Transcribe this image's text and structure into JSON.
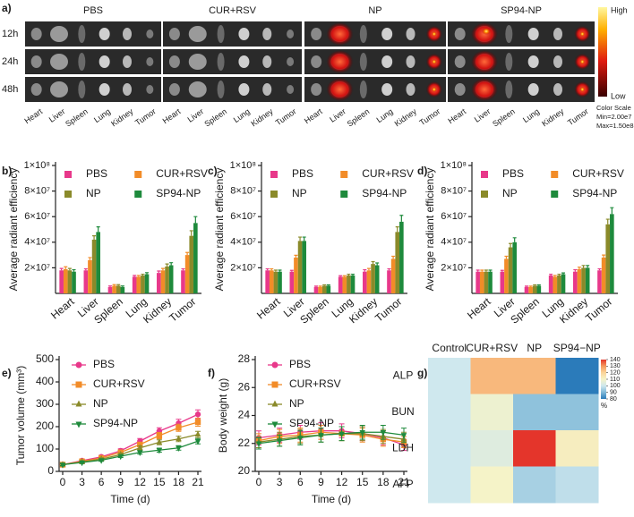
{
  "imaging": {
    "label": "a)",
    "groups": [
      "PBS",
      "CUR+RSV",
      "NP",
      "SP94-NP"
    ],
    "times": [
      "12h",
      "24h",
      "48h"
    ],
    "organs": [
      "Heart",
      "Liver",
      "Spleen",
      "Lung",
      "Kidney",
      "Tumor"
    ],
    "scale": {
      "high": "High",
      "low": "Low",
      "title": "Color Scale",
      "min": "Min=2.00e7",
      "max": "Max=1.50e8"
    }
  },
  "chart_data": [
    {
      "type": "bar",
      "label": "b)",
      "ylabel": "Average radiant efficiency",
      "categories": [
        "Heart",
        "Liver",
        "Spleen",
        "Lung",
        "Kidney",
        "Tumor"
      ],
      "ylim": [
        0,
        100000000
      ],
      "yticks": [
        {
          "value": 20000000,
          "label": "2×10⁷"
        },
        {
          "value": 40000000,
          "label": "4×10⁷"
        },
        {
          "value": 60000000,
          "label": "6×10⁷"
        },
        {
          "value": 80000000,
          "label": "8×10⁷"
        },
        {
          "value": 100000000,
          "label": "1×10⁸"
        }
      ],
      "series": [
        {
          "name": "PBS",
          "color": "#e8388a",
          "values": [
            18000000,
            18000000,
            5000000,
            13000000,
            16000000,
            18000000
          ],
          "errors": [
            1500000,
            1200000,
            800000,
            1000000,
            1500000,
            1200000
          ]
        },
        {
          "name": "CUR+RSV",
          "color": "#f28c28",
          "values": [
            19000000,
            26000000,
            6000000,
            13000000,
            18000000,
            30000000
          ],
          "errors": [
            1800000,
            2000000,
            800000,
            1000000,
            1500000,
            2000000
          ]
        },
        {
          "name": "NP",
          "color": "#8a8a2a",
          "values": [
            18000000,
            42000000,
            6000000,
            14000000,
            21000000,
            45000000
          ],
          "errors": [
            1500000,
            3000000,
            800000,
            1000000,
            2000000,
            4000000
          ]
        },
        {
          "name": "SP94-NP",
          "color": "#1e8a3c",
          "values": [
            17000000,
            48000000,
            5000000,
            15000000,
            22000000,
            55000000
          ],
          "errors": [
            1500000,
            4000000,
            800000,
            1200000,
            2000000,
            5000000
          ]
        }
      ]
    },
    {
      "type": "bar",
      "label": "c)",
      "ylabel": "Average radiant efficiency",
      "categories": [
        "Heart",
        "Liver",
        "Spleen",
        "Lung",
        "Kidney",
        "Tumor"
      ],
      "ylim": [
        0,
        100000000
      ],
      "yticks": [
        {
          "value": 20000000,
          "label": "2×10⁷"
        },
        {
          "value": 40000000,
          "label": "4×10⁷"
        },
        {
          "value": 60000000,
          "label": "6×10⁷"
        },
        {
          "value": 80000000,
          "label": "8×10⁷"
        },
        {
          "value": 100000000,
          "label": "1×10⁸"
        }
      ],
      "series": [
        {
          "name": "PBS",
          "color": "#e8388a",
          "values": [
            18000000,
            17000000,
            5000000,
            13000000,
            17000000,
            18000000
          ],
          "errors": [
            1200000,
            1000000,
            700000,
            800000,
            1500000,
            1200000
          ]
        },
        {
          "name": "CUR+RSV",
          "color": "#f28c28",
          "values": [
            18000000,
            28000000,
            5000000,
            13000000,
            18000000,
            27000000
          ],
          "errors": [
            1200000,
            1800000,
            700000,
            800000,
            1500000,
            2000000
          ]
        },
        {
          "name": "NP",
          "color": "#8a8a2a",
          "values": [
            17000000,
            41000000,
            6000000,
            14000000,
            23000000,
            48000000
          ],
          "errors": [
            1200000,
            3000000,
            700000,
            1000000,
            1800000,
            4000000
          ]
        },
        {
          "name": "SP94-NP",
          "color": "#1e8a3c",
          "values": [
            17000000,
            41000000,
            6000000,
            14000000,
            22000000,
            56000000
          ],
          "errors": [
            1200000,
            3000000,
            700000,
            1000000,
            1800000,
            5000000
          ]
        }
      ]
    },
    {
      "type": "bar",
      "label": "d)",
      "ylabel": "Average radiant efficiency",
      "categories": [
        "Heart",
        "Liver",
        "Spleen",
        "Lung",
        "Kidney",
        "Tumor"
      ],
      "ylim": [
        0,
        100000000
      ],
      "yticks": [
        {
          "value": 20000000,
          "label": "2×10⁷"
        },
        {
          "value": 40000000,
          "label": "4×10⁷"
        },
        {
          "value": 60000000,
          "label": "6×10⁷"
        },
        {
          "value": 80000000,
          "label": "8×10⁷"
        },
        {
          "value": 100000000,
          "label": "1×10⁸"
        }
      ],
      "series": [
        {
          "name": "PBS",
          "color": "#e8388a",
          "values": [
            17000000,
            17000000,
            5000000,
            14000000,
            17000000,
            18000000
          ],
          "errors": [
            1200000,
            1000000,
            700000,
            1000000,
            1500000,
            1200000
          ]
        },
        {
          "name": "CUR+RSV",
          "color": "#f28c28",
          "values": [
            17000000,
            27000000,
            5000000,
            13000000,
            19000000,
            28000000
          ],
          "errors": [
            1200000,
            2000000,
            700000,
            1000000,
            1500000,
            2000000
          ]
        },
        {
          "name": "NP",
          "color": "#8a8a2a",
          "values": [
            17000000,
            36000000,
            6000000,
            14000000,
            20000000,
            54000000
          ],
          "errors": [
            1200000,
            3000000,
            700000,
            1000000,
            1800000,
            4000000
          ]
        },
        {
          "name": "SP94-NP",
          "color": "#1e8a3c",
          "values": [
            17000000,
            40000000,
            6000000,
            15000000,
            20000000,
            62000000
          ],
          "errors": [
            1200000,
            3500000,
            700000,
            1000000,
            1800000,
            5000000
          ]
        }
      ]
    },
    {
      "type": "line",
      "label": "e)",
      "xlabel": "Time (d)",
      "ylabel": "Tumor volume (mm³)",
      "x": [
        0,
        3,
        6,
        9,
        12,
        15,
        18,
        21
      ],
      "xlim": [
        0,
        21
      ],
      "xticks": [
        0,
        3,
        6,
        9,
        12,
        15,
        18,
        21
      ],
      "ylim": [
        0,
        500
      ],
      "yticks": [
        0,
        100,
        200,
        300,
        400,
        500
      ],
      "legend": "upper left",
      "series": [
        {
          "name": "PBS",
          "color": "#e8388a",
          "marker": "circle",
          "values": [
            30,
            48,
            65,
            92,
            135,
            180,
            215,
            255
          ],
          "errors": [
            4,
            5,
            7,
            9,
            12,
            15,
            18,
            20
          ]
        },
        {
          "name": "CUR+RSV",
          "color": "#f28c28",
          "marker": "square",
          "values": [
            30,
            45,
            60,
            85,
            120,
            160,
            195,
            220
          ],
          "errors": [
            4,
            5,
            6,
            8,
            10,
            14,
            16,
            18
          ]
        },
        {
          "name": "NP",
          "color": "#8a8a2a",
          "marker": "triangle-up",
          "values": [
            30,
            42,
            55,
            75,
            105,
            130,
            145,
            165
          ],
          "errors": [
            4,
            5,
            6,
            7,
            9,
            11,
            12,
            14
          ]
        },
        {
          "name": "SP94-NP",
          "color": "#1e8a3c",
          "marker": "triangle-down",
          "values": [
            30,
            40,
            50,
            68,
            85,
            95,
            105,
            135
          ],
          "errors": [
            4,
            4,
            5,
            6,
            8,
            9,
            10,
            12
          ]
        }
      ]
    },
    {
      "type": "line",
      "label": "f)",
      "xlabel": "Time (d)",
      "ylabel": "Body weight (g)",
      "x": [
        0,
        3,
        6,
        9,
        12,
        15,
        18,
        21
      ],
      "xlim": [
        0,
        21
      ],
      "xticks": [
        0,
        3,
        6,
        9,
        12,
        15,
        18,
        21
      ],
      "ylim": [
        20,
        28
      ],
      "yticks": [
        20,
        22,
        24,
        26,
        28
      ],
      "legend": "upper left",
      "series": [
        {
          "name": "PBS",
          "color": "#e8388a",
          "marker": "circle",
          "values": [
            22.4,
            22.6,
            22.8,
            22.9,
            22.9,
            22.7,
            22.4,
            21.9
          ],
          "errors": [
            0.5,
            0.5,
            0.5,
            0.6,
            0.5,
            0.5,
            0.5,
            0.4
          ]
        },
        {
          "name": "CUR+RSV",
          "color": "#f28c28",
          "marker": "square",
          "values": [
            22.2,
            22.5,
            22.6,
            22.8,
            22.7,
            22.6,
            22.3,
            22.1
          ],
          "errors": [
            0.5,
            0.5,
            0.5,
            0.5,
            0.5,
            0.5,
            0.5,
            0.4
          ]
        },
        {
          "name": "NP",
          "color": "#8a8a2a",
          "marker": "triangle-up",
          "values": [
            22.1,
            22.3,
            22.5,
            22.6,
            22.7,
            22.7,
            22.5,
            22.3
          ],
          "errors": [
            0.4,
            0.5,
            0.5,
            0.5,
            0.5,
            0.5,
            0.5,
            0.5
          ]
        },
        {
          "name": "SP94-NP",
          "color": "#1e8a3c",
          "marker": "triangle-down",
          "values": [
            22.0,
            22.2,
            22.4,
            22.6,
            22.7,
            22.8,
            22.8,
            22.6
          ],
          "errors": [
            0.4,
            0.4,
            0.5,
            0.5,
            0.5,
            0.5,
            0.5,
            0.5
          ]
        }
      ]
    },
    {
      "type": "heatmap",
      "label": "g)",
      "columns": [
        "Control",
        "CUR+RSV",
        "NP",
        "SP94−NP"
      ],
      "rows": [
        "ALP",
        "BUN",
        "LDH",
        "AFP"
      ],
      "values": [
        [
          100,
          125,
          125,
          80
        ],
        [
          100,
          108,
          92,
          92
        ],
        [
          100,
          104,
          140,
          112
        ],
        [
          100,
          110,
          95,
          98
        ]
      ],
      "zlim": [
        80,
        140
      ],
      "zticks": [
        80,
        90,
        100,
        110,
        120,
        130,
        140
      ],
      "zlabel": "%",
      "colors": [
        "#2b7bba",
        "#7fb8d8",
        "#cfe8ee",
        "#f5f3c8",
        "#fbd59a",
        "#f59a5e",
        "#e4352b"
      ]
    }
  ]
}
